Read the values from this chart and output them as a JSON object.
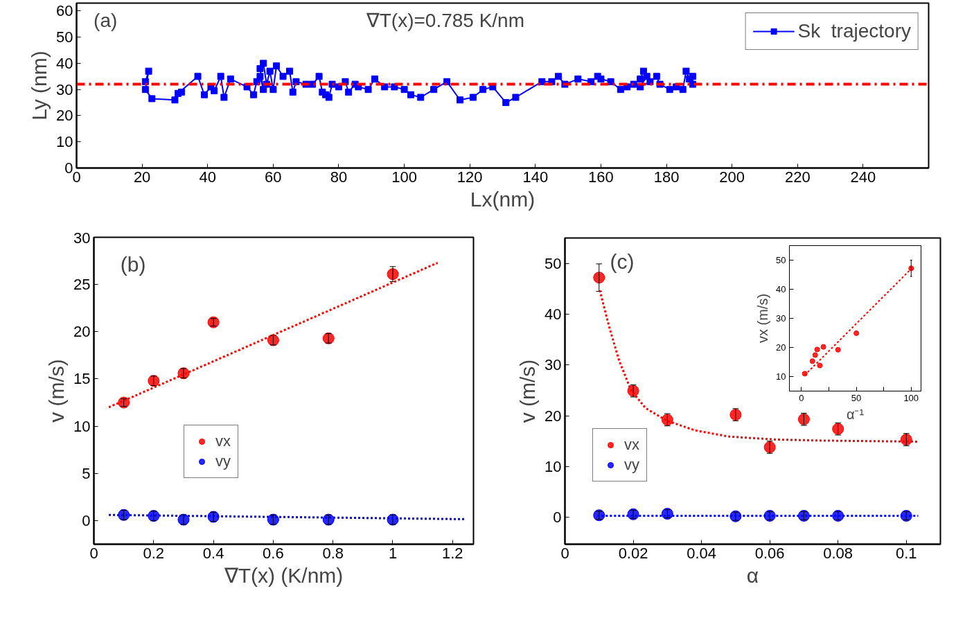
{
  "chart_data": [
    {
      "type": "line",
      "xlabel": "Lx(nm)",
      "ylabel": "Ly (nm)",
      "annotations": [
        "(a)",
        "∇T(x)=0.785 K/nm"
      ],
      "xlim": [
        0,
        260
      ],
      "ylim": [
        0,
        63
      ],
      "xticks": [
        0,
        20,
        40,
        60,
        80,
        100,
        120,
        140,
        160,
        180,
        200,
        220,
        240
      ],
      "yticks": [
        0,
        10,
        20,
        30,
        40,
        50,
        60
      ],
      "grid": false,
      "legend": "top right",
      "ref_lines": [
        {
          "axis": "y",
          "value": 32,
          "color": "#ff0000",
          "line_style": "dashed"
        }
      ],
      "series": [
        {
          "name": "Sk  trajectory",
          "color": "#0000ff",
          "marker": "square",
          "line_style": "solid",
          "x": [
            21,
            22,
            21,
            23,
            30,
            32,
            31,
            37,
            39,
            41,
            42,
            44,
            45,
            47,
            52,
            54,
            55,
            56,
            57,
            56,
            57,
            58,
            59,
            60,
            61,
            63,
            65,
            66,
            67,
            70,
            72,
            74,
            75,
            76,
            77,
            78,
            80,
            82,
            83,
            85,
            86,
            89,
            91,
            94,
            97,
            100,
            102,
            105,
            109,
            113,
            117,
            121,
            124,
            127,
            131,
            134,
            142,
            145,
            147,
            149,
            153,
            157,
            159,
            160,
            163,
            166,
            168,
            170,
            172,
            173,
            174,
            172,
            175,
            177,
            178,
            181,
            183,
            185,
            186,
            187,
            188,
            188
          ],
          "values": [
            33,
            37,
            30,
            26.5,
            26,
            29,
            28.5,
            35,
            28,
            31,
            29.5,
            35,
            27,
            34,
            31,
            28,
            33,
            35,
            30,
            38,
            40,
            32,
            37,
            30,
            39,
            35,
            37,
            29,
            33,
            32,
            32,
            35,
            29,
            28,
            27,
            32,
            31,
            33,
            29,
            32,
            31,
            30,
            34,
            31,
            31,
            30,
            28,
            27,
            30,
            33,
            26,
            27,
            30,
            31,
            25,
            27,
            33,
            33,
            35,
            32,
            34,
            33,
            35,
            34,
            33,
            30,
            31,
            32,
            34,
            37,
            35,
            31,
            33,
            35,
            32,
            30,
            31,
            30,
            37,
            34,
            35,
            32
          ]
        }
      ]
    },
    {
      "type": "scatter",
      "xlabel": "∇T(x) (K/nm)",
      "ylabel": "v (m/s)",
      "annotations": [
        "(b)"
      ],
      "xlim": [
        0,
        1.27
      ],
      "ylim": [
        -2.5,
        30
      ],
      "xticks": [
        0,
        0.2,
        0.4,
        0.6,
        0.8,
        1,
        1.2
      ],
      "yticks": [
        0,
        5,
        10,
        15,
        20,
        25,
        30
      ],
      "grid": false,
      "legend": "left",
      "series": [
        {
          "name": "vx",
          "color": "#ff0000",
          "marker": "circle",
          "x": [
            0.1,
            0.2,
            0.3,
            0.4,
            0.6,
            0.785,
            1.0
          ],
          "values": [
            12.5,
            14.8,
            15.6,
            21.0,
            19.1,
            19.3,
            26.1
          ],
          "errors": [
            0.4,
            0.5,
            0.5,
            0.4,
            0.5,
            0.5,
            0.8
          ]
        },
        {
          "name": "vy",
          "color": "#0000ff",
          "marker": "circle",
          "x": [
            0.1,
            0.2,
            0.3,
            0.4,
            0.6,
            0.785,
            1.0
          ],
          "values": [
            0.6,
            0.5,
            0.1,
            0.4,
            0.1,
            0.1,
            0.1
          ],
          "errors": [
            0.5,
            0.5,
            0.5,
            0.5,
            0.5,
            0.5,
            0.5
          ]
        },
        {
          "type": "line",
          "color": "#ff0000",
          "line_style": "dotted",
          "x": [
            0.05,
            1.15
          ],
          "values": [
            12.0,
            27.3
          ]
        },
        {
          "type": "line",
          "color": "#0000ff",
          "line_style": "dotted",
          "x": [
            0.05,
            1.24
          ],
          "values": [
            0.6,
            0.15
          ]
        }
      ]
    },
    {
      "type": "scatter",
      "xlabel": "α",
      "ylabel": "v (m/s)",
      "annotations": [
        "(c)"
      ],
      "xlim": [
        0,
        0.11
      ],
      "ylim": [
        -5.3,
        55
      ],
      "xticks": [
        0,
        0.02,
        0.04,
        0.06,
        0.08,
        0.1
      ],
      "yticks": [
        0,
        10,
        20,
        30,
        40,
        50
      ],
      "grid": false,
      "legend": "left",
      "series": [
        {
          "name": "vx",
          "color": "#ff0000",
          "marker": "circle",
          "x": [
            0.01,
            0.02,
            0.03,
            0.05,
            0.06,
            0.07,
            0.08,
            0.1
          ],
          "values": [
            47.2,
            24.9,
            19.2,
            20.2,
            13.8,
            19.3,
            17.4,
            15.3
          ],
          "errors": [
            2.7,
            1.2,
            1.2,
            1.2,
            1.2,
            1.2,
            1.2,
            1.2
          ]
        },
        {
          "name": "vy",
          "color": "#0000ff",
          "marker": "circle",
          "x": [
            0.01,
            0.02,
            0.03,
            0.05,
            0.06,
            0.07,
            0.08,
            0.1
          ],
          "values": [
            0.4,
            0.6,
            0.7,
            0.2,
            0.3,
            0.3,
            0.3,
            0.3
          ],
          "errors": [
            0.8,
            0.8,
            0.8,
            0.8,
            0.8,
            0.8,
            0.8,
            0.8
          ]
        },
        {
          "type": "line",
          "color": "#ff0000",
          "line_style": "dotted",
          "x": [
            0.0102,
            0.013,
            0.0159,
            0.0193,
            0.0236,
            0.0299,
            0.0382,
            0.048,
            0.062,
            0.076,
            0.1035
          ],
          "values": [
            44.7,
            37.4,
            30.8,
            25.1,
            21.5,
            19.0,
            17.1,
            15.9,
            15.3,
            15.1,
            14.9
          ]
        },
        {
          "type": "line",
          "color": "#0000ff",
          "line_style": "dotted",
          "x": [
            0.0095,
            0.1035
          ],
          "values": [
            0.3,
            0.3
          ]
        }
      ]
    },
    {
      "type": "scatter",
      "xlabel": "α⁻¹",
      "ylabel": "vx (m/s)",
      "xlim": [
        -11,
        109
      ],
      "ylim": [
        5,
        55
      ],
      "xticks": [
        0,
        {
          "value": 25,
          "label": null
        },
        50,
        {
          "value": 75,
          "label": null
        },
        100
      ],
      "yticks": [
        10,
        20,
        30,
        40,
        50
      ],
      "grid": false,
      "series": [
        {
          "color": "#ff0000",
          "marker": "circle",
          "x": [
            3,
            10,
            12.5,
            14.3,
            16.7,
            20,
            33.3,
            50,
            100
          ],
          "values": [
            11,
            15.3,
            17.4,
            19.3,
            13.8,
            20.2,
            19.2,
            24.9,
            47.2
          ],
          "errors": [
            null,
            null,
            null,
            null,
            null,
            null,
            null,
            null,
            2.8
          ]
        },
        {
          "type": "line",
          "color": "#ff0000",
          "line_style": "dotted",
          "x": [
            3,
            100
          ],
          "values": [
            10.5,
            47
          ]
        }
      ]
    }
  ]
}
